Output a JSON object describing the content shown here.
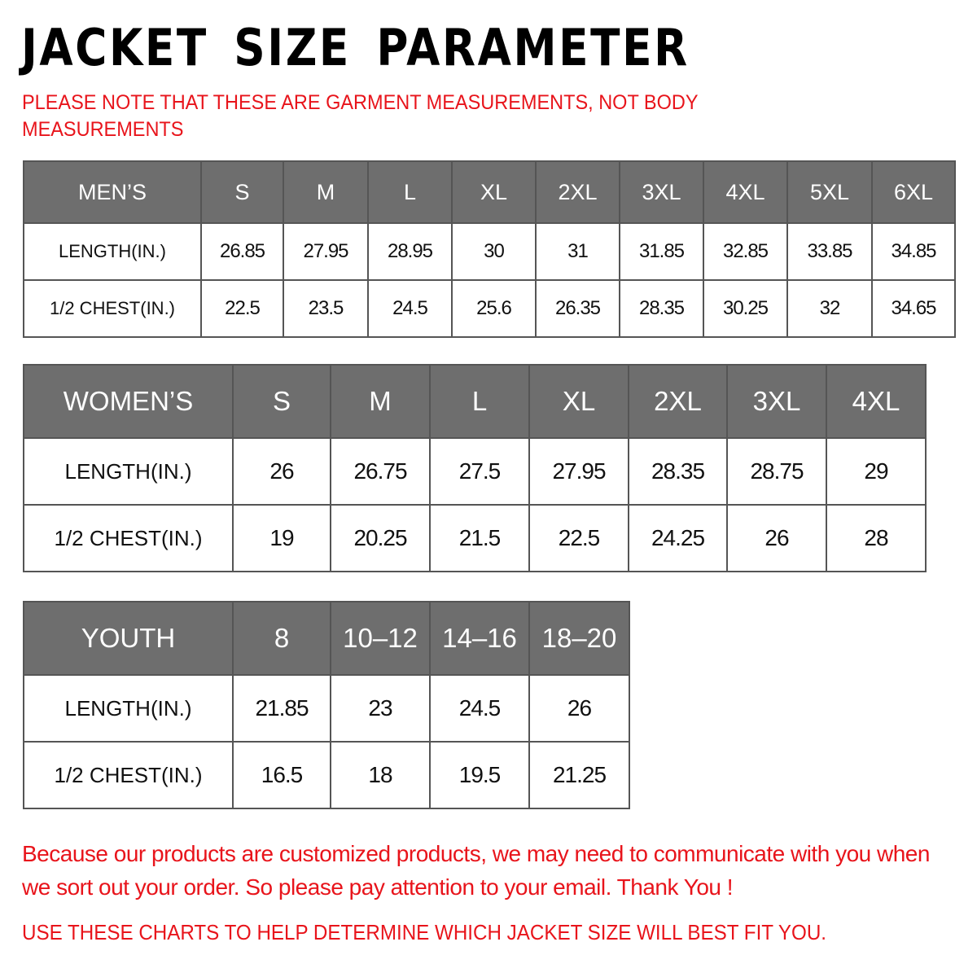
{
  "title": "JACKET SIZE PARAMETER",
  "note": "PLEASE NOTE THAT THESE ARE GARMENT MEASUREMENTS, NOT BODY MEASUREMENTS",
  "colors": {
    "header_bg": "#6e6e6e",
    "accent_red": "#e8141b"
  },
  "mens": {
    "header": [
      "MEN’S",
      "S",
      "M",
      "L",
      "XL",
      "2XL",
      "3XL",
      "4XL",
      "5XL",
      "6XL"
    ],
    "rows": [
      [
        "LENGTH(IN.)",
        "26.85",
        "27.95",
        "28.95",
        "30",
        "31",
        "31.85",
        "32.85",
        "33.85",
        "34.85"
      ],
      [
        "1/2 CHEST(IN.)",
        "22.5",
        "23.5",
        "24.5",
        "25.6",
        "26.35",
        "28.35",
        "30.25",
        "32",
        "34.65"
      ]
    ]
  },
  "womens": {
    "header": [
      "WOMEN’S",
      "S",
      "M",
      "L",
      "XL",
      "2XL",
      "3XL",
      "4XL"
    ],
    "rows": [
      [
        "LENGTH(IN.)",
        "26",
        "26.75",
        "27.5",
        "27.95",
        "28.35",
        "28.75",
        "29"
      ],
      [
        "1/2 CHEST(IN.)",
        "19",
        "20.25",
        "21.5",
        "22.5",
        "24.25",
        "26",
        "28"
      ]
    ]
  },
  "youth": {
    "header": [
      "YOUTH",
      "8",
      "10–12",
      "14–16",
      "18–20"
    ],
    "rows": [
      [
        "LENGTH(IN.)",
        "21.85",
        "23",
        "24.5",
        "26"
      ],
      [
        "1/2 CHEST(IN.)",
        "16.5",
        "18",
        "19.5",
        "21.25"
      ]
    ]
  },
  "message": "Because our products are customized products, we may need to communicate with you when we sort out your order. So please pay attention to your email. Thank You !",
  "footer": "USE THESE CHARTS TO HELP DETERMINE WHICH JACKET SIZE WILL BEST FIT YOU."
}
